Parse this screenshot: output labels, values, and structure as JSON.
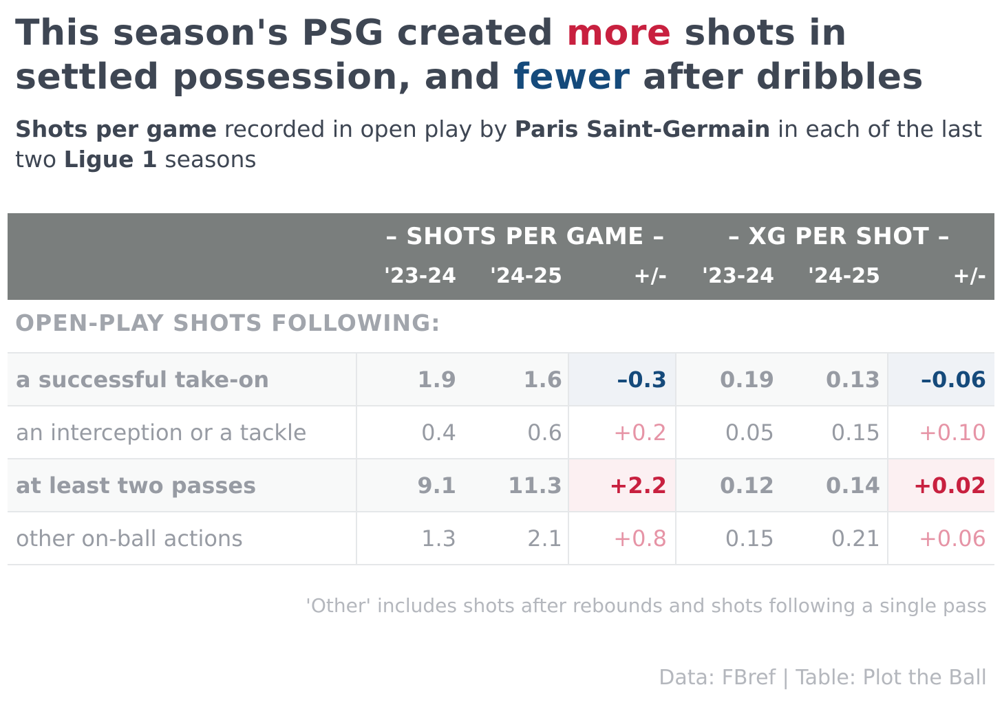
{
  "title": {
    "part1": "This season's PSG created ",
    "more": "more",
    "part2": " shots in settled possession, and ",
    "fewer": "fewer",
    "part3": " after dribbles"
  },
  "subtitle": {
    "b1": "Shots per game",
    "t1": " recorded in open play by ",
    "b2": "Paris Saint-Germain",
    "t2": " in each of the last two ",
    "b3": "Ligue 1",
    "t3": " seasons"
  },
  "colors": {
    "increase": "#c8203f",
    "decrease": "#154a7b",
    "header_bg": "#7a7e7d",
    "increase_faded": "#e694a6",
    "increase_bg": "#fcf0f2",
    "decrease_bg": "#eff2f6"
  },
  "chart_data": {
    "type": "table",
    "header_groups": [
      "– SHOTS PER GAME –",
      "– XG PER SHOT –"
    ],
    "columns": [
      "'23-24",
      "'24-25",
      "+/-",
      "'23-24",
      "'24-25",
      "+/-"
    ],
    "section_label": "OPEN-PLAY SHOTS FOLLOWING:",
    "rows": [
      {
        "label": "a successful take-on",
        "emphasis": true,
        "shots_2324": "1.9",
        "shots_2425": "1.6",
        "shots_diff": "–0.3",
        "xg_2324": "0.19",
        "xg_2425": "0.13",
        "xg_diff": "–0.06",
        "direction": "down"
      },
      {
        "label": "an interception or a tackle",
        "emphasis": false,
        "shots_2324": "0.4",
        "shots_2425": "0.6",
        "shots_diff": "+0.2",
        "xg_2324": "0.05",
        "xg_2425": "0.15",
        "xg_diff": "+0.10",
        "direction": "up"
      },
      {
        "label": "at least two passes",
        "emphasis": true,
        "shots_2324": "9.1",
        "shots_2425": "11.3",
        "shots_diff": "+2.2",
        "xg_2324": "0.12",
        "xg_2425": "0.14",
        "xg_diff": "+0.02",
        "direction": "up"
      },
      {
        "label": "other on-ball actions",
        "emphasis": false,
        "shots_2324": "1.3",
        "shots_2425": "2.1",
        "shots_diff": "+0.8",
        "xg_2324": "0.15",
        "xg_2425": "0.21",
        "xg_diff": "+0.06",
        "direction": "up"
      }
    ]
  },
  "footnote": "'Other' includes shots after rebounds and shots following a single pass",
  "credit": "Data: FBref | Table: Plot the Ball"
}
